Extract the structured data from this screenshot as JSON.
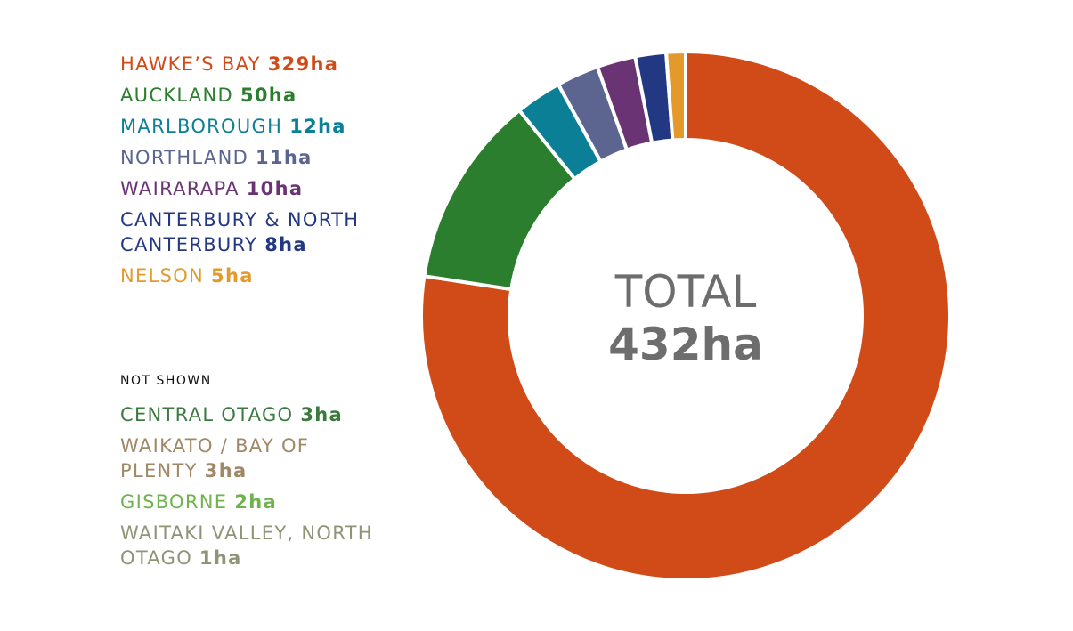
{
  "chart_data": {
    "type": "pie",
    "donut": true,
    "center_label": "TOTAL",
    "center_value": "432ha",
    "slices": [
      {
        "label": "HAWKE’S BAY",
        "display": "329ha",
        "value": 329,
        "color": "#d04b18"
      },
      {
        "label": "AUCKLAND",
        "display": "50ha",
        "value": 50,
        "color": "#2a7e2d"
      },
      {
        "label": "MARLBOROUGH",
        "display": "12ha",
        "value": 12,
        "color": "#0a7f96"
      },
      {
        "label": "NORTHLAND",
        "display": "11ha",
        "value": 11,
        "color": "#5b658f"
      },
      {
        "label": "WAIRARAPA",
        "display": "10ha",
        "value": 10,
        "color": "#6a3474"
      },
      {
        "label": "CANTERBURY & NORTH CANTERBURY",
        "display": "8ha",
        "value": 8,
        "color": "#233882"
      },
      {
        "label": "NELSON",
        "display": "5ha",
        "value": 5,
        "color": "#e39a2a"
      }
    ],
    "not_shown_title": "NOT SHOWN",
    "not_shown": [
      {
        "label": "CENTRAL OTAGO",
        "display": "3ha",
        "value": 3,
        "color": "#3a7a3f"
      },
      {
        "label": "WAIKATO / BAY OF PLENTY",
        "display": "3ha",
        "value": 3,
        "color": "#a08766"
      },
      {
        "label": "GISBORNE",
        "display": "2ha",
        "value": 2,
        "color": "#6fb24e"
      },
      {
        "label": "WAITAKI VALLEY, NORTH OTAGO",
        "display": "1ha",
        "value": 1,
        "color": "#8e9476"
      }
    ]
  }
}
